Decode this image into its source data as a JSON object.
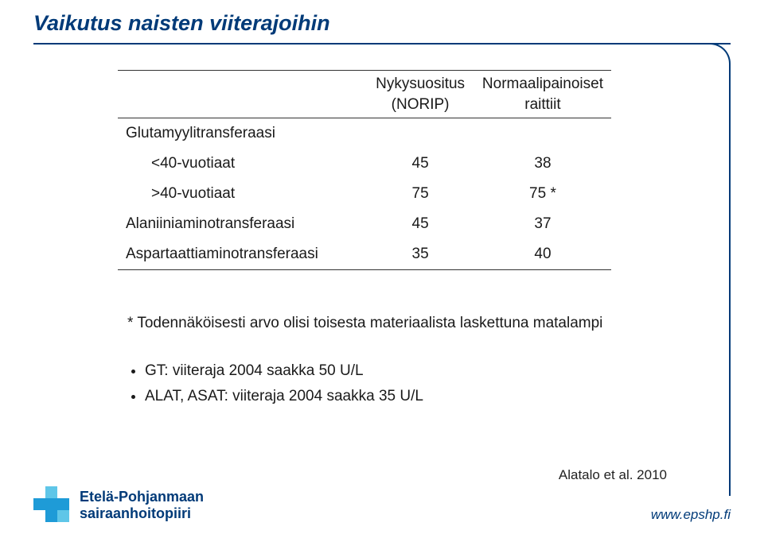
{
  "title": "Vaikutus naisten viiterajoihin",
  "table": {
    "headers": {
      "col1": "",
      "col2_line1": "Nykysuositus",
      "col2_line2": "(NORIP)",
      "col3_line1": "Normaalipainoiset",
      "col3_line2": "raittiit"
    },
    "rows": [
      {
        "label": "Glutamyylitransferaasi",
        "v1": "",
        "v2": "",
        "indent": false
      },
      {
        "label": "<40-vuotiaat",
        "v1": "45",
        "v2": "38",
        "indent": true
      },
      {
        "label": ">40-vuotiaat",
        "v1": "75",
        "v2": "75 *",
        "indent": true
      },
      {
        "label": "Alaniiniaminotransferaasi",
        "v1": "45",
        "v2": "37",
        "indent": false
      },
      {
        "label": "Aspartaattiaminotransferaasi",
        "v1": "35",
        "v2": "40",
        "indent": false
      }
    ]
  },
  "footnote": "* Todennäköisesti arvo olisi toisesta materiaalista laskettuna matalampi",
  "bullets": [
    "GT: viiteraja 2004 saakka 50 U/L",
    "ALAT, ASAT: viiteraja 2004 saakka 35 U/L"
  ],
  "citation": "Alatalo et al. 2010",
  "footer_url": "www.epshp.fi",
  "logo": {
    "line1": "Etelä-Pohjanmaan",
    "line2": "sairaanhoitopiiri"
  }
}
